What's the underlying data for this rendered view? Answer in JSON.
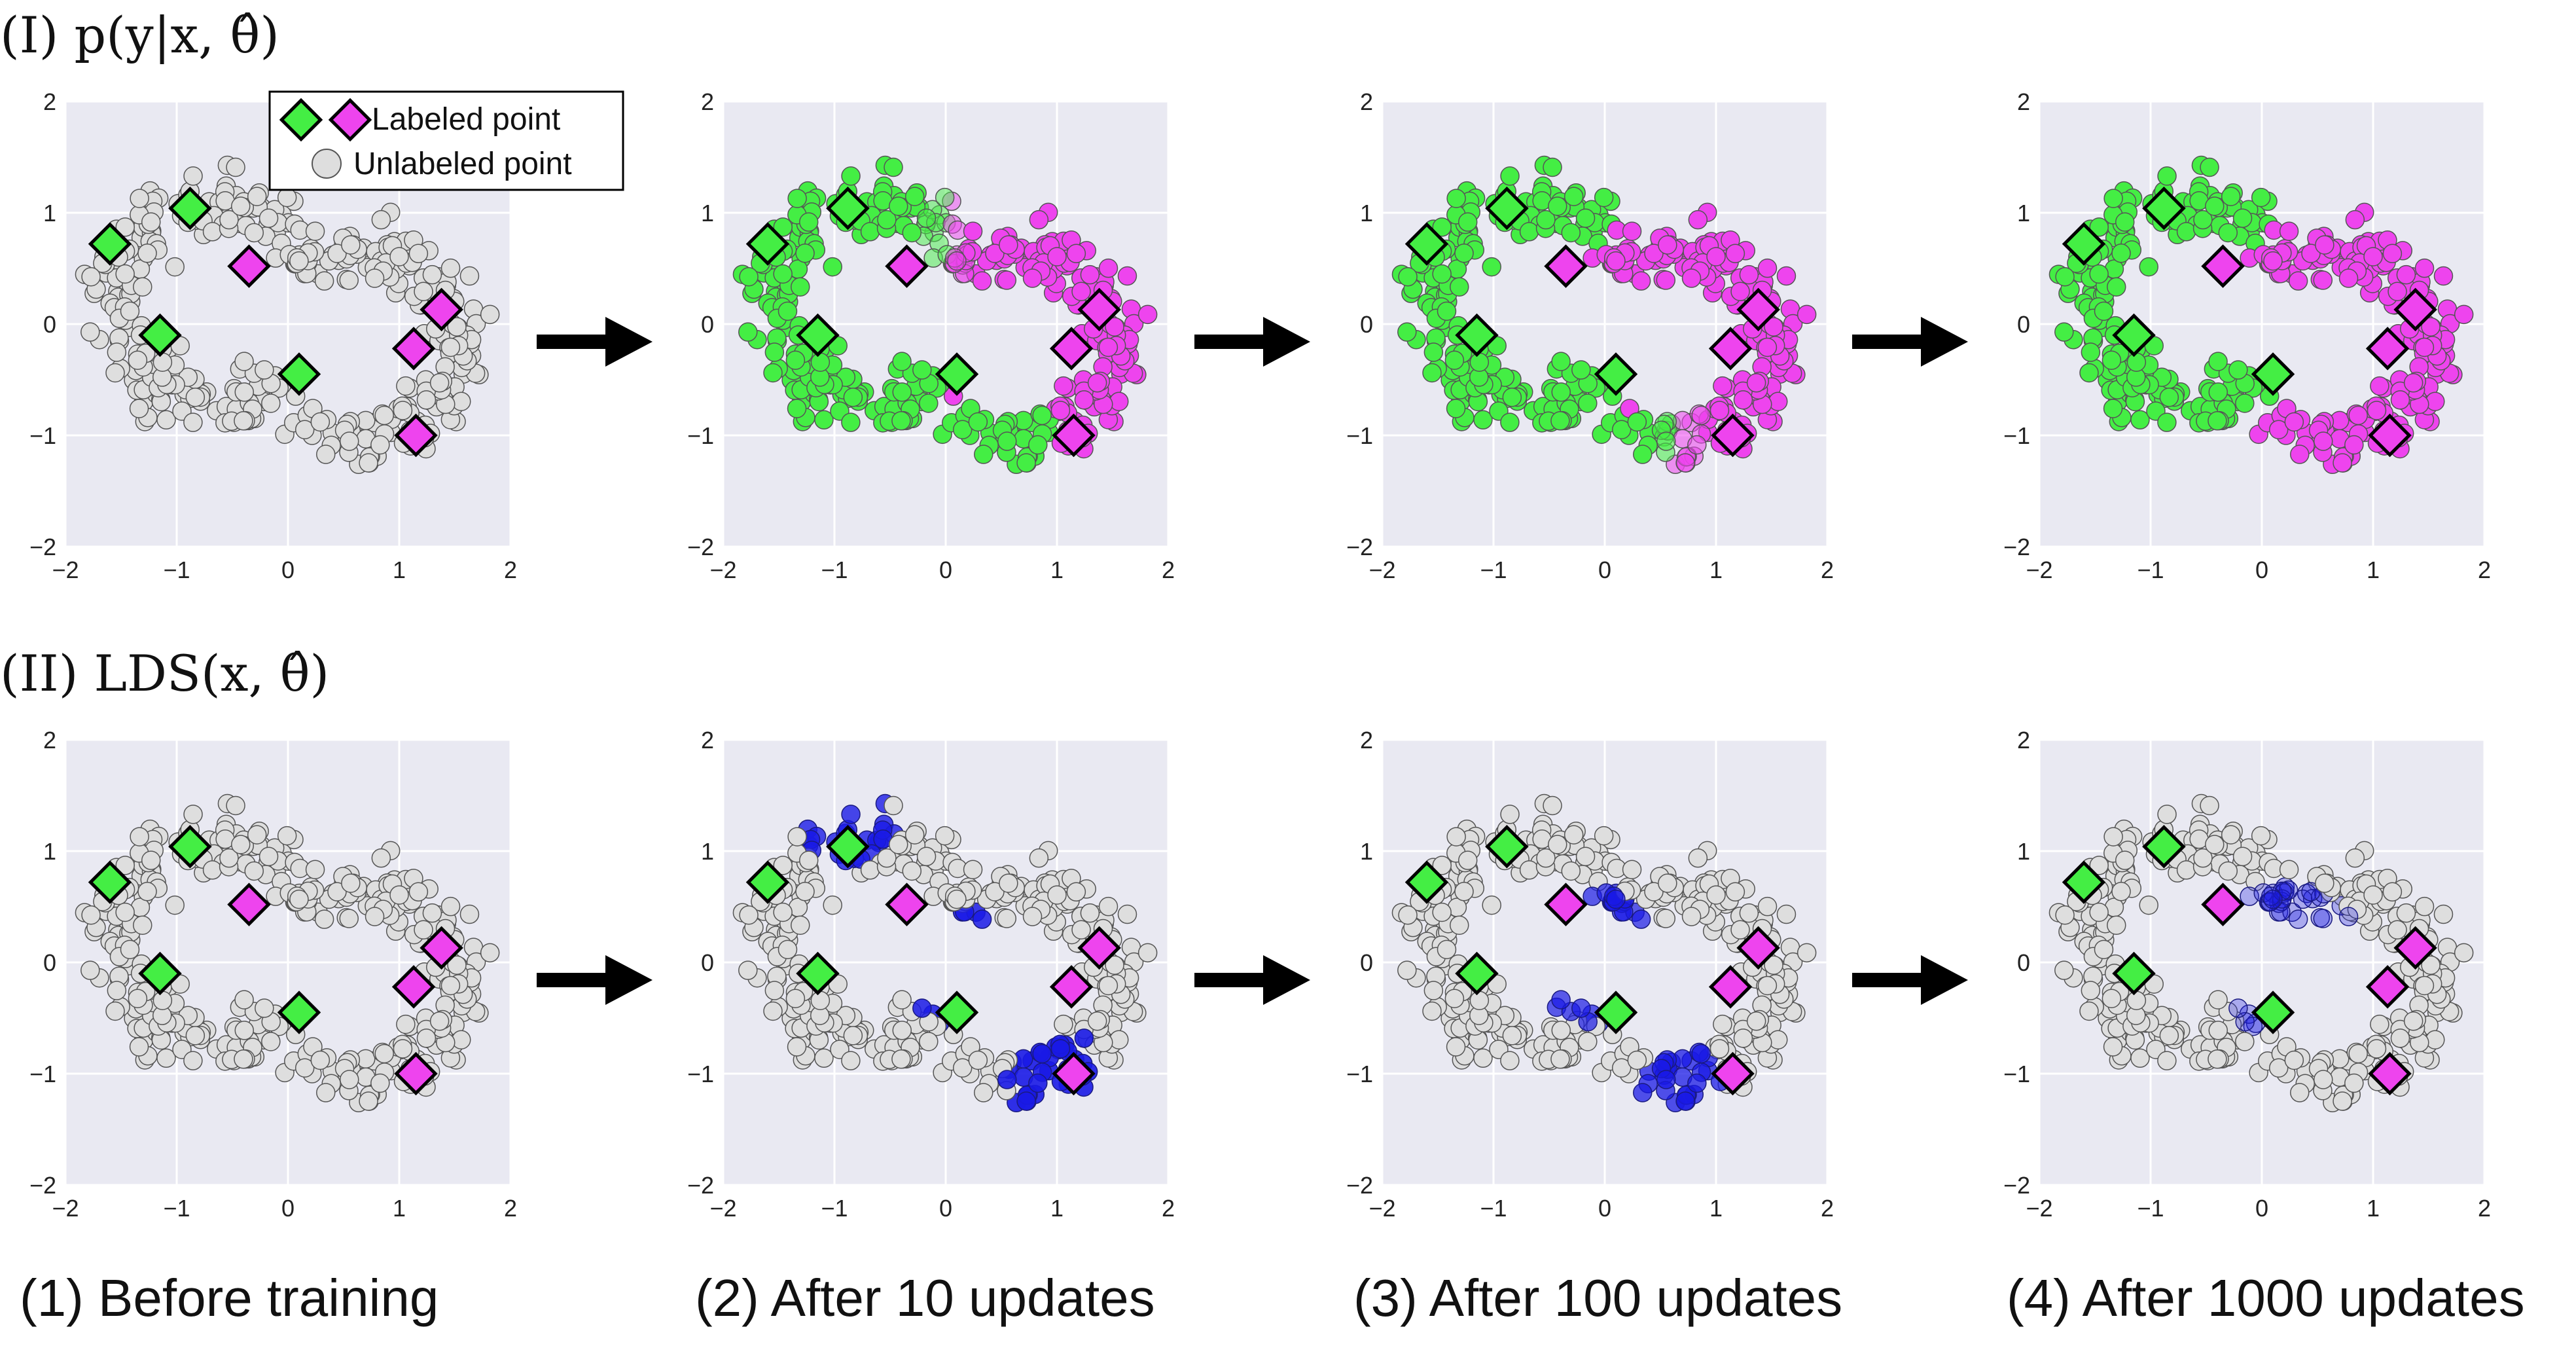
{
  "chart_data": {
    "type": "scatter",
    "row_titles": [
      "(I) p(y|x, θ̂)",
      "(II) LDS(x, θ̂)"
    ],
    "captions": [
      "(1) Before training",
      "(2) After 10 updates",
      "(3) After 100 updates",
      "(4) After 1000 updates"
    ],
    "axis": {
      "xlim": [
        -2,
        2
      ],
      "ylim": [
        -2,
        2
      ],
      "ticks": [
        -2,
        -1,
        0,
        1,
        2
      ],
      "tick_labels": [
        "−2",
        "−1",
        "0",
        "1",
        "2"
      ],
      "grid": true
    },
    "legend": {
      "placement": "top-right of first panel",
      "entries": [
        "Labeled point",
        "Unlabeled point"
      ]
    },
    "colors": {
      "axes_background": "#e9e9f2",
      "grid": "#ffffff",
      "unlabeled": "#dedede",
      "class_a": "#44ee44",
      "class_b": "#ee44ee",
      "lds": "#1a1ae6",
      "arrow": "#000000"
    },
    "labeled_points": {
      "class_a": [
        [
          -1.6,
          0.72
        ],
        [
          -0.88,
          1.04
        ],
        [
          -1.15,
          -0.1
        ],
        [
          0.1,
          -0.45
        ]
      ],
      "class_b": [
        [
          -0.35,
          0.52
        ],
        [
          1.38,
          0.13
        ],
        [
          1.13,
          -0.22
        ],
        [
          1.15,
          -1.0
        ]
      ]
    },
    "panels": [
      {
        "row": "I",
        "step": 0,
        "description": "all unlabeled gray"
      },
      {
        "row": "I",
        "step": 10,
        "description": "partial green/magenta coloring"
      },
      {
        "row": "I",
        "step": 100,
        "description": "mostly separated"
      },
      {
        "row": "I",
        "step": 1000,
        "description": "moons fully separated"
      },
      {
        "row": "II",
        "step": 0,
        "description": "no LDS"
      },
      {
        "row": "II",
        "step": 10,
        "description": "high LDS near boundary"
      },
      {
        "row": "II",
        "step": 100,
        "description": "moderate LDS"
      },
      {
        "row": "II",
        "step": 1000,
        "description": "low LDS"
      }
    ]
  }
}
